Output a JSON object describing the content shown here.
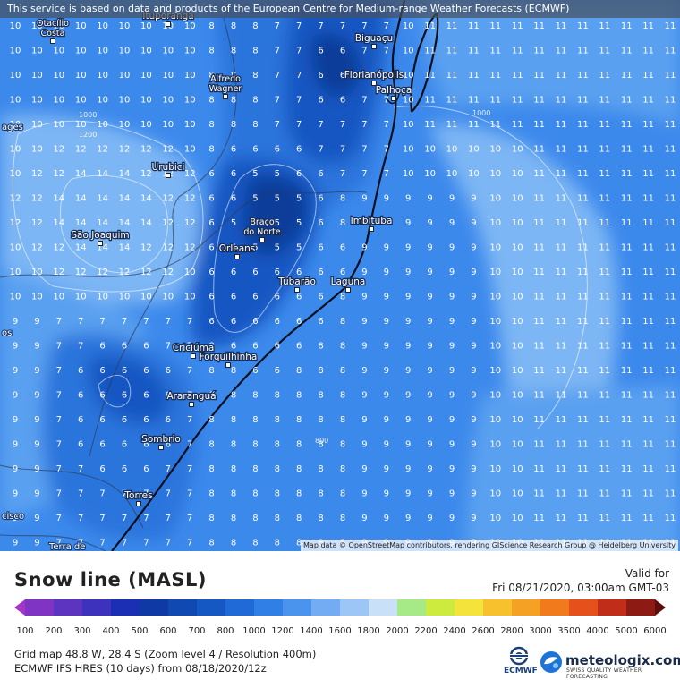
{
  "header": {
    "notice": "This service is based on data and products of the European Centre for Medium-range Weather Forecasts (ECMWF)"
  },
  "map": {
    "attribution": "Map data © OpenStreetMap contributors, rendering GIScience Research Group @ Heidelberg University",
    "cities": [
      {
        "name": "Otacílio\nCosta"
      },
      {
        "name": "Ituporanga"
      },
      {
        "name": "Biguaçu"
      },
      {
        "name": "Florianópolis"
      },
      {
        "name": "Palhoça"
      },
      {
        "name": "Alfredo\nWagner"
      },
      {
        "name": "Urubici"
      },
      {
        "name": "Braço\ndo Norte"
      },
      {
        "name": "Imbituba"
      },
      {
        "name": "São Joaquim"
      },
      {
        "name": "Orleans"
      },
      {
        "name": "Tubarão"
      },
      {
        "name": "Laguna"
      },
      {
        "name": "Criciúma"
      },
      {
        "name": "Forquilhinha"
      },
      {
        "name": "Araranguá"
      },
      {
        "name": "Sombrio"
      },
      {
        "name": "Torres"
      }
    ],
    "edge_labels": [
      "ages",
      "os",
      "cisco",
      "Terra de"
    ],
    "contour_labels": [
      "1000",
      "1200",
      "1000",
      "800"
    ],
    "colors": {
      "deep": "#0b3e9a",
      "dark": "#1456c2",
      "mid": "#2a74dc",
      "base": "#3c89ec",
      "light": "#5aa0f0",
      "pale": "#7db6f4"
    }
  },
  "legend": {
    "title": "Snow line (MASL)",
    "valid_label": "Valid for",
    "valid_time": "Fri 08/21/2020, 03:00am GMT-03",
    "scale_values": [
      "100",
      "200",
      "300",
      "400",
      "500",
      "600",
      "700",
      "800",
      "1000",
      "1200",
      "1400",
      "1600",
      "1800",
      "2000",
      "2200",
      "2400",
      "2600",
      "2800",
      "3000",
      "3500",
      "4000",
      "5000",
      "6000"
    ],
    "scale_colors": [
      "#a335c9",
      "#7f34c3",
      "#5c34c0",
      "#3c32bc",
      "#1a2fb3",
      "#0f3aa6",
      "#1149b2",
      "#1558c4",
      "#1f6ad6",
      "#2f7fe6",
      "#4b94ee",
      "#74acf3",
      "#9cc6f6",
      "#c8e0f8",
      "#a6ea88",
      "#cdeb3f",
      "#f4e33a",
      "#f6c12d",
      "#f4a124",
      "#f07a1c",
      "#e6501a",
      "#c02d18",
      "#8e1a14",
      "#5d0e0c"
    ],
    "grid_info": "Grid map 48.8 W, 28.4 S (Zoom level 4 / Resolution 400m)",
    "model_info": "ECMWF IFS HRES (10 days) from 08/18/2020/12z",
    "ecmwf_label": "ECMWF",
    "brand": "meteologix.com",
    "brand_tagline": "SWISS QUALITY WEATHER FORECASTING"
  }
}
